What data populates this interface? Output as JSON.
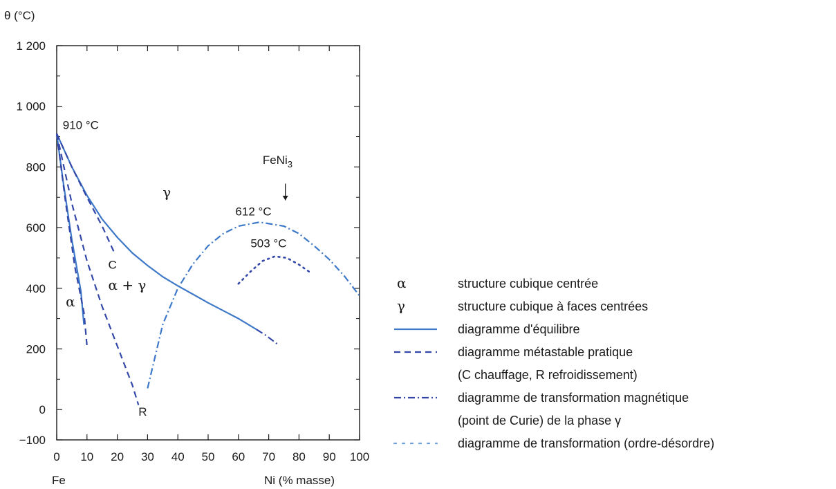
{
  "chart_data": {
    "type": "line",
    "ylabel": "θ (°C)",
    "xlabel": "Ni (% masse)",
    "x_origin_label": "Fe",
    "xlim": [
      0,
      100
    ],
    "ylim": [
      -100,
      1200
    ],
    "x_ticks": [
      0,
      10,
      20,
      30,
      40,
      50,
      60,
      70,
      80,
      90,
      100
    ],
    "y_ticks": [
      {
        "value": 1200,
        "label": "1 200"
      },
      {
        "value": 1000,
        "label": "1 000"
      },
      {
        "value": 800,
        "label": "800"
      },
      {
        "value": 600,
        "label": "600"
      },
      {
        "value": 400,
        "label": "400"
      },
      {
        "value": 200,
        "label": "200"
      },
      {
        "value": 0,
        "label": "0"
      },
      {
        "value": -100,
        "label": "−100"
      }
    ],
    "series": [
      {
        "style": "solid",
        "color": "#3d78c9",
        "points": [
          [
            0,
            910
          ],
          [
            5,
            800
          ],
          [
            10,
            706
          ],
          [
            15,
            628
          ],
          [
            20,
            568
          ],
          [
            25,
            516
          ],
          [
            30,
            475
          ],
          [
            35,
            438
          ],
          [
            40,
            408
          ],
          [
            45,
            380
          ],
          [
            50,
            352
          ],
          [
            55,
            326
          ],
          [
            60,
            300
          ],
          [
            66,
            264
          ]
        ]
      },
      {
        "style": "solid",
        "color": "#3d78c9",
        "points": [
          [
            0,
            910
          ],
          [
            2,
            760
          ],
          [
            5,
            560
          ],
          [
            8,
            390
          ],
          [
            9,
            280
          ]
        ]
      },
      {
        "style": "dashed",
        "color": "#3347a8",
        "points": [
          [
            0,
            910
          ],
          [
            5,
            800
          ],
          [
            10,
            700
          ],
          [
            15,
            605
          ],
          [
            19,
            518
          ]
        ]
      },
      {
        "style": "dashed",
        "color": "#3347a8",
        "points": [
          [
            0,
            910
          ],
          [
            3,
            680
          ],
          [
            6,
            470
          ],
          [
            9,
            320
          ],
          [
            10,
            210
          ]
        ]
      },
      {
        "style": "dashed",
        "color": "#3347a8",
        "points": [
          [
            0,
            910
          ],
          [
            5,
            680
          ],
          [
            10,
            490
          ],
          [
            15,
            340
          ],
          [
            20,
            210
          ],
          [
            25,
            80
          ],
          [
            27,
            15
          ]
        ]
      },
      {
        "style": "dashdot",
        "color": "#3d78c9",
        "points": [
          [
            30,
            70
          ],
          [
            35,
            280
          ],
          [
            40,
            400
          ],
          [
            45,
            480
          ],
          [
            50,
            540
          ],
          [
            55,
            580
          ],
          [
            60,
            605
          ],
          [
            67,
            618
          ],
          [
            75,
            605
          ],
          [
            80,
            580
          ],
          [
            85,
            540
          ],
          [
            90,
            495
          ],
          [
            95,
            440
          ],
          [
            100,
            375
          ]
        ]
      },
      {
        "style": "dashdot",
        "color": "#3347a8",
        "points": [
          [
            66,
            264
          ],
          [
            69,
            245
          ],
          [
            73,
            215
          ]
        ]
      },
      {
        "style": "dotted",
        "color": "#3347a8",
        "points": [
          [
            60,
            415
          ],
          [
            64,
            455
          ],
          [
            68,
            490
          ],
          [
            72,
            505
          ],
          [
            76,
            500
          ],
          [
            80,
            478
          ],
          [
            84,
            450
          ]
        ]
      }
    ],
    "annotations": [
      {
        "text": "910 °C",
        "x": 2,
        "y": 925
      },
      {
        "text": "612 °C",
        "x": 59,
        "y": 640
      },
      {
        "text": "503 °C",
        "x": 64,
        "y": 535
      },
      {
        "text": "C",
        "x": 17,
        "y": 465
      },
      {
        "text": "R",
        "x": 27,
        "y": -20
      },
      {
        "text": "FeNi",
        "sub": "3",
        "x": 68,
        "y": 810
      },
      {
        "text": "γ",
        "x": 35,
        "y": 700
      },
      {
        "text": "α + γ",
        "x": 17,
        "y": 395
      },
      {
        "text": "α",
        "x": 3,
        "y": 340
      }
    ],
    "legend": [
      {
        "symbol": "α",
        "text": "structure cubique centrée"
      },
      {
        "symbol": "γ",
        "text": "structure cubique à faces centrées"
      },
      {
        "line_style": "solid",
        "color": "#3d78c9",
        "text": "diagramme d'équilibre"
      },
      {
        "line_style": "dashed",
        "color": "#3347a8",
        "text": "diagramme métastable pratique",
        "text2": "(C chauffage, R refroidissement)"
      },
      {
        "line_style": "dashdot",
        "color": "#3347a8",
        "text": "diagramme de transformation magnétique",
        "text2": "(point de Curie) de la phase γ"
      },
      {
        "line_style": "dotted",
        "color": "#6aa0dc",
        "text": "diagramme de transformation (ordre-désordre)"
      }
    ]
  }
}
